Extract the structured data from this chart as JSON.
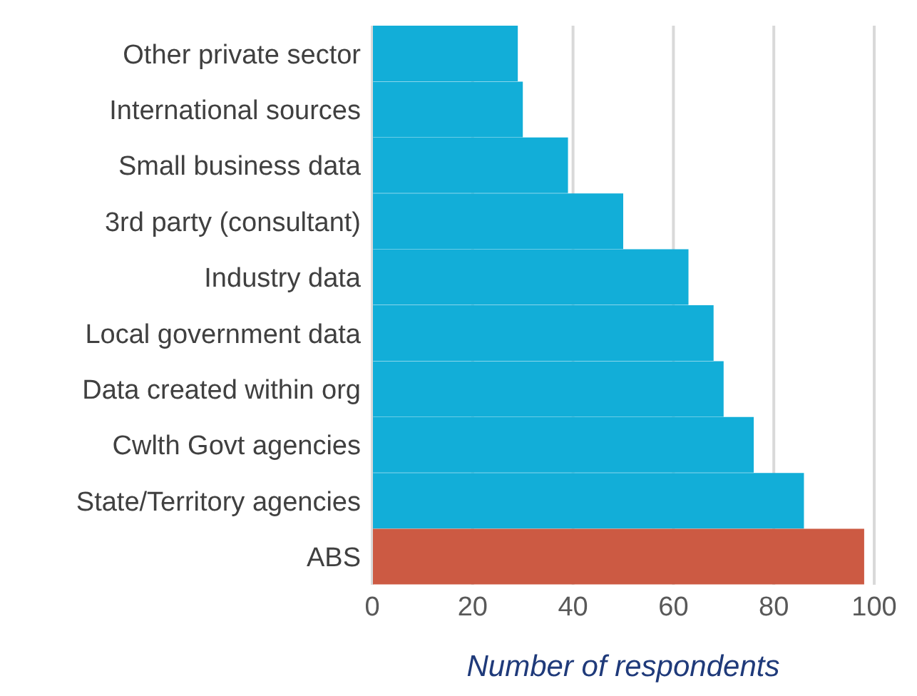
{
  "chart_data": {
    "type": "bar",
    "orientation": "horizontal",
    "xlabel": "Number of respondents",
    "categories": [
      "Other private sector",
      "International sources",
      "Small business data",
      "3rd party (consultant)",
      "Industry data",
      "Local government data",
      "Data created within org",
      "Cwlth Govt agencies",
      "State/Territory agencies",
      "ABS"
    ],
    "values": [
      29,
      30,
      39,
      50,
      63,
      68,
      70,
      76,
      86,
      98
    ],
    "colors": [
      "#12aed8",
      "#12aed8",
      "#12aed8",
      "#12aed8",
      "#12aed8",
      "#12aed8",
      "#12aed8",
      "#12aed8",
      "#12aed8",
      "#cc5a43"
    ],
    "xlim": [
      0,
      100
    ],
    "xticks": [
      0,
      20,
      40,
      60,
      80,
      100
    ],
    "grid": "x"
  }
}
